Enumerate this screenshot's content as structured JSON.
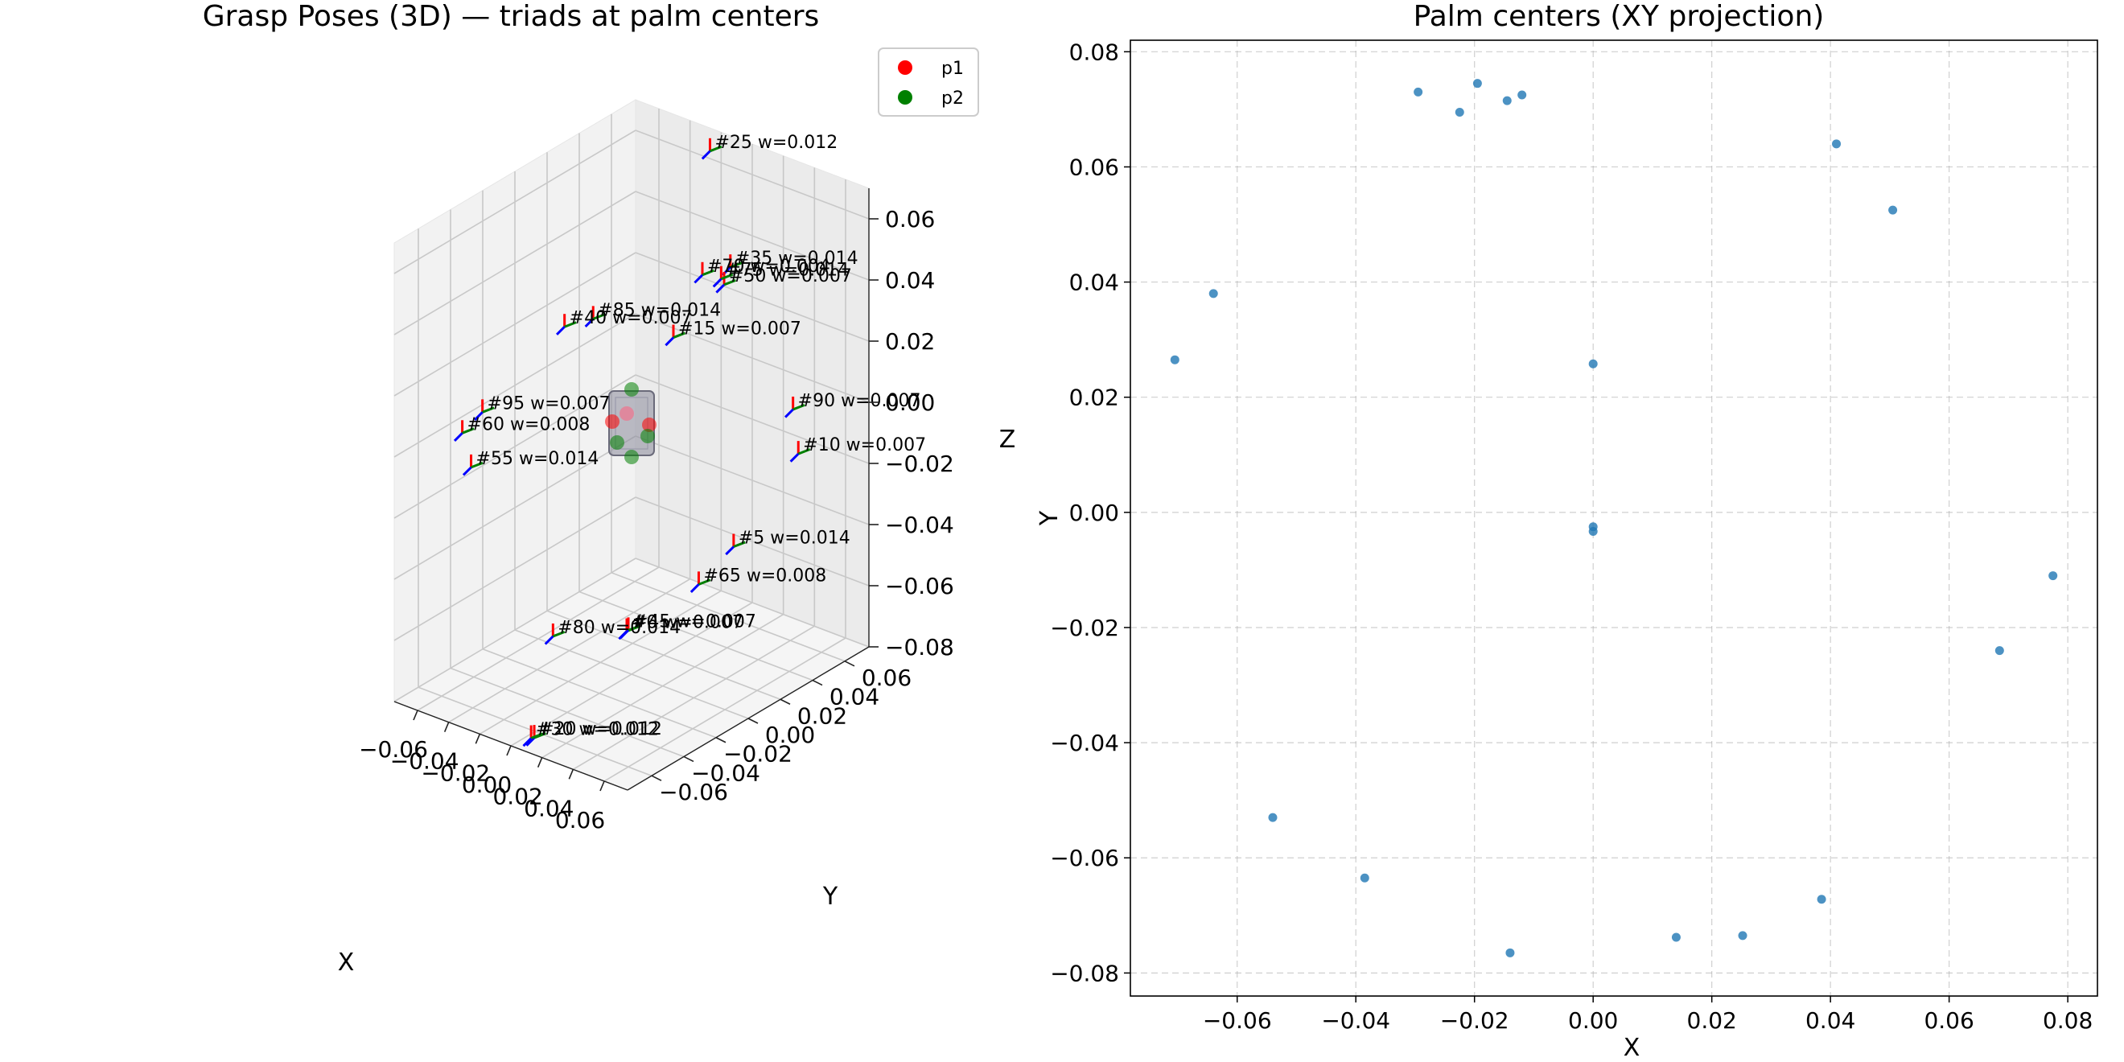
{
  "chart_data": [
    {
      "type": "scatter",
      "projection": "3d",
      "title": "Grasp Poses (3D) — triads at palm centers",
      "xlabel": "X",
      "ylabel": "Y",
      "zlabel": "Z",
      "xlim": [
        -0.075,
        0.075
      ],
      "ylim": [
        -0.075,
        0.075
      ],
      "zlim": [
        -0.08,
        0.07
      ],
      "x_ticks": [
        "−0.06",
        "−0.04",
        "−0.02",
        "0.00",
        "0.02",
        "0.04",
        "0.06"
      ],
      "y_ticks": [
        "−0.06",
        "−0.04",
        "−0.02",
        "0.00",
        "0.02",
        "0.04",
        "0.06"
      ],
      "z_ticks": [
        "−0.08",
        "−0.06",
        "−0.04",
        "−0.02",
        "0.00",
        "0.02",
        "0.04",
        "0.06"
      ],
      "legend": {
        "placement": "top-right",
        "entries": [
          {
            "label": "p1",
            "color": "#ff0000"
          },
          {
            "label": "p2",
            "color": "#008000"
          }
        ]
      },
      "triad_colors": {
        "x_axis": "#ff0000",
        "y_axis": "#008000",
        "z_axis": "#0000ff"
      },
      "object_color": "#8a8a9a",
      "annotations": [
        {
          "text": "#25 w=0.012",
          "x": -0.022,
          "y": 0.07,
          "z": 0.065
        },
        {
          "text": "#35 w=0.014",
          "x": -0.012,
          "y": 0.073,
          "z": 0.028
        },
        {
          "text": "#50 w=0.007",
          "x": -0.015,
          "y": 0.072,
          "z": 0.022
        },
        {
          "text": "#75 w=0.014",
          "x": -0.02,
          "y": 0.075,
          "z": 0.022
        },
        {
          "text": "#70 w=0.004",
          "x": -0.03,
          "y": 0.073,
          "z": 0.022
        },
        {
          "text": "#15 w=0.007",
          "x": 0.0,
          "y": 0.026,
          "z": 0.022
        },
        {
          "text": "#40 w=0.007",
          "x": -0.07,
          "y": 0.026,
          "z": 0.012
        },
        {
          "text": "#85 w=0.014",
          "x": -0.064,
          "y": 0.038,
          "z": 0.012
        },
        {
          "text": "#90 w=0.007",
          "x": 0.05,
          "y": 0.052,
          "z": 0.0
        },
        {
          "text": "#10 w=0.007",
          "x": 0.041,
          "y": 0.064,
          "z": -0.02
        },
        {
          "text": "#95 w=0.007",
          "x": -0.07,
          "y": -0.025,
          "z": 0.0
        },
        {
          "text": "#60 w=0.008",
          "x": -0.054,
          "y": -0.053,
          "z": 0.005
        },
        {
          "text": "#5 w=0.014",
          "x": 0.077,
          "y": -0.011,
          "z": -0.02
        },
        {
          "text": "#65 w=0.008",
          "x": 0.068,
          "y": -0.024,
          "z": -0.03
        },
        {
          "text": "#55 w=0.014",
          "x": -0.038,
          "y": -0.063,
          "z": 0.0
        },
        {
          "text": "#0 w=0.007",
          "x": 0.0,
          "y": -0.003,
          "z": -0.065
        },
        {
          "text": "#45 w=0.007",
          "x": 0.0,
          "y": -0.002,
          "z": -0.065
        },
        {
          "text": "#80 w=0.014",
          "x": 0.025,
          "y": -0.073,
          "z": -0.04
        },
        {
          "text": "#20 w=0.012",
          "x": 0.014,
          "y": -0.074,
          "z": -0.075
        },
        {
          "text": "#30 w=0.012",
          "x": 0.013,
          "y": -0.075,
          "z": -0.075
        }
      ]
    },
    {
      "type": "scatter",
      "title": "Palm centers (XY projection)",
      "xlabel": "X",
      "ylabel": "Y",
      "xlim": [
        -0.078,
        0.085
      ],
      "ylim": [
        -0.084,
        0.082
      ],
      "x_ticks": [
        -0.06,
        -0.04,
        -0.02,
        0.0,
        0.02,
        0.04,
        0.06,
        0.08
      ],
      "y_ticks": [
        -0.08,
        -0.06,
        -0.04,
        -0.02,
        0.0,
        0.02,
        0.04,
        0.06,
        0.08
      ],
      "x_tick_labels": [
        "−0.06",
        "−0.04",
        "−0.02",
        "0.00",
        "0.02",
        "0.04",
        "0.06",
        "0.08"
      ],
      "y_tick_labels": [
        "−0.08",
        "−0.06",
        "−0.04",
        "−0.02",
        "0.00",
        "0.02",
        "0.04",
        "0.06",
        "0.08"
      ],
      "grid": true,
      "color": "#1f77b4",
      "points": [
        {
          "x": -0.0295,
          "y": 0.073
        },
        {
          "x": -0.0225,
          "y": 0.0695
        },
        {
          "x": -0.0195,
          "y": 0.0745
        },
        {
          "x": -0.0145,
          "y": 0.0715
        },
        {
          "x": -0.012,
          "y": 0.0725
        },
        {
          "x": 0.041,
          "y": 0.064
        },
        {
          "x": 0.0505,
          "y": 0.0525
        },
        {
          "x": -0.064,
          "y": 0.038
        },
        {
          "x": -0.0705,
          "y": 0.0265
        },
        {
          "x": 0.0,
          "y": 0.0258
        },
        {
          "x": 0.0,
          "y": -0.0025
        },
        {
          "x": 0.0,
          "y": -0.0033
        },
        {
          "x": 0.0775,
          "y": -0.011
        },
        {
          "x": 0.0685,
          "y": -0.024
        },
        {
          "x": -0.054,
          "y": -0.053
        },
        {
          "x": -0.0385,
          "y": -0.0635
        },
        {
          "x": 0.0385,
          "y": -0.0672
        },
        {
          "x": 0.014,
          "y": -0.0738
        },
        {
          "x": 0.0252,
          "y": -0.0735
        },
        {
          "x": -0.014,
          "y": -0.0765
        }
      ]
    }
  ]
}
